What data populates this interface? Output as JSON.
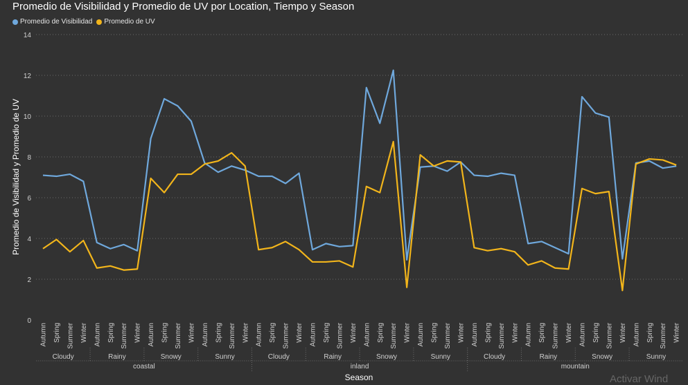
{
  "chart_data": {
    "type": "line",
    "title": "Promedio de Visibilidad y Promedio de UV por Location, Tiempo y Season",
    "xlabel": "Season",
    "ylabel": "Promedio de Visibilidad y Promedio de UV",
    "ylim": [
      0,
      14
    ],
    "yticks": [
      0,
      2,
      4,
      6,
      8,
      10,
      12,
      14
    ],
    "grid": true,
    "legend_position": "top-left",
    "locations": [
      "coastal",
      "inland",
      "mountain"
    ],
    "weathers": [
      "Cloudy",
      "Rainy",
      "Snowy",
      "Sunny"
    ],
    "seasons": [
      "Autumn",
      "Spring",
      "Summer",
      "Winter"
    ],
    "series": [
      {
        "name": "Promedio de Visibilidad",
        "color": "#6fa8dc",
        "values": [
          7.1,
          7.05,
          7.15,
          6.8,
          3.8,
          3.5,
          3.7,
          3.4,
          8.9,
          10.85,
          10.5,
          9.75,
          7.7,
          7.25,
          7.55,
          7.35,
          7.05,
          7.05,
          6.7,
          7.2,
          3.45,
          3.75,
          3.6,
          3.65,
          11.4,
          9.65,
          12.25,
          2.95,
          7.5,
          7.55,
          7.3,
          7.75,
          7.1,
          7.05,
          7.2,
          7.1,
          3.75,
          3.85,
          3.55,
          3.25,
          10.95,
          10.15,
          9.95,
          3.0,
          7.7,
          7.8,
          7.45,
          7.55
        ]
      },
      {
        "name": "Promedio de UV",
        "color": "#f2b51b",
        "values": [
          3.5,
          3.95,
          3.35,
          3.9,
          2.55,
          2.65,
          2.45,
          2.5,
          6.95,
          6.25,
          7.15,
          7.15,
          7.65,
          7.8,
          8.2,
          7.55,
          3.45,
          3.55,
          3.85,
          3.45,
          2.85,
          2.85,
          2.9,
          2.6,
          6.55,
          6.25,
          8.75,
          1.6,
          8.1,
          7.55,
          7.8,
          7.75,
          3.55,
          3.4,
          3.5,
          3.35,
          2.7,
          2.9,
          2.55,
          2.5,
          6.45,
          6.2,
          6.3,
          1.45,
          7.65,
          7.9,
          7.85,
          7.6
        ]
      }
    ]
  },
  "watermark": "Activar Wind"
}
